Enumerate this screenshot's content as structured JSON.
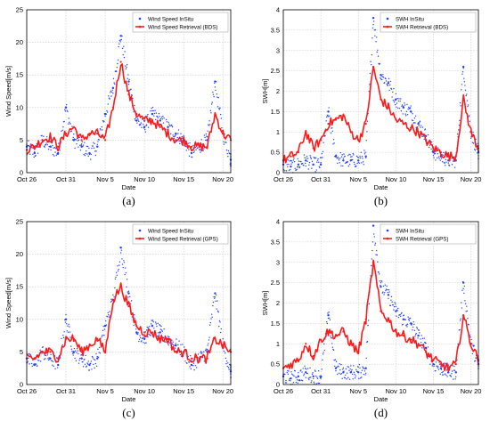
{
  "chart_data": [
    {
      "type": "scatter",
      "panel_label": "(a)",
      "xlabel": "Date",
      "ylabel": "Wind Speed[m/s]",
      "x_ticks": [
        "Oct 26",
        "Oct 31",
        "Nov 5",
        "Nov 10",
        "Nov 15",
        "Nov 20"
      ],
      "xlim": [
        "Oct 26",
        "Nov 21"
      ],
      "ylim": [
        0,
        25
      ],
      "y_ticks": [
        0,
        5,
        10,
        15,
        20,
        25
      ],
      "grid": true,
      "legend_position": "top-right",
      "colors": {
        "insitu": "#1f3fff",
        "retrieval": "#ff1a1a"
      },
      "series": [
        {
          "name": "Wind Speed InSitu",
          "style": "dots",
          "x": [
            "Oct 26",
            "Oct 27",
            "Oct 28",
            "Oct 29",
            "Oct 30",
            "Oct 31",
            "Nov 1",
            "Nov 2",
            "Nov 3",
            "Nov 4",
            "Nov 5",
            "Nov 6",
            "Nov 7",
            "Nov 8",
            "Nov 9",
            "Nov 10",
            "Nov 11",
            "Nov 12",
            "Nov 13",
            "Nov 14",
            "Nov 15",
            "Nov 16",
            "Nov 17",
            "Nov 18",
            "Nov 19",
            "Nov 20",
            "Nov 21"
          ],
          "y": [
            4,
            3,
            5,
            4,
            3,
            10,
            5,
            4,
            3,
            4,
            9,
            13,
            21,
            14,
            8,
            7,
            9,
            8,
            7,
            6,
            5,
            3,
            4,
            5,
            14,
            6,
            2
          ]
        },
        {
          "name": "Wind Speed Retrieval (BDS)",
          "style": "line",
          "x": [
            "Oct 26",
            "Oct 27",
            "Oct 28",
            "Oct 29",
            "Oct 30",
            "Oct 31",
            "Nov 1",
            "Nov 2",
            "Nov 3",
            "Nov 4",
            "Nov 5",
            "Nov 6",
            "Nov 7",
            "Nov 8",
            "Nov 9",
            "Nov 10",
            "Nov 11",
            "Nov 12",
            "Nov 13",
            "Nov 14",
            "Nov 15",
            "Nov 16",
            "Nov 17",
            "Nov 18",
            "Nov 19",
            "Nov 20",
            "Nov 21"
          ],
          "y": [
            3.5,
            4,
            5,
            5.5,
            4,
            6,
            7,
            5,
            6,
            6,
            5,
            10,
            17,
            12,
            9,
            8,
            8,
            7,
            6,
            5,
            5,
            4,
            4,
            4,
            9,
            6,
            5
          ]
        }
      ]
    },
    {
      "type": "scatter",
      "panel_label": "(b)",
      "xlabel": "Date",
      "ylabel": "SWH[m]",
      "x_ticks": [
        "Oct 26",
        "Oct 31",
        "Nov 5",
        "Nov 10",
        "Nov 15",
        "Nov 20"
      ],
      "xlim": [
        "Oct 26",
        "Nov 21"
      ],
      "ylim": [
        0,
        4
      ],
      "y_ticks": [
        0,
        0.5,
        1,
        1.5,
        2,
        2.5,
        3,
        3.5,
        4
      ],
      "grid": true,
      "legend_position": "top-right",
      "colors": {
        "insitu": "#1f3fff",
        "retrieval": "#ff1a1a"
      },
      "series": [
        {
          "name": "SWH InSitu",
          "style": "dots",
          "x": [
            "Oct 26",
            "Oct 27",
            "Oct 28",
            "Oct 29",
            "Oct 30",
            "Oct 31",
            "Nov 1",
            "Nov 2",
            "Nov 3",
            "Nov 4",
            "Nov 5",
            "Nov 6",
            "Nov 7",
            "Nov 8",
            "Nov 9",
            "Nov 10",
            "Nov 11",
            "Nov 12",
            "Nov 13",
            "Nov 14",
            "Nov 15",
            "Nov 16",
            "Nov 17",
            "Nov 18",
            "Nov 19",
            "Nov 20",
            "Nov 21"
          ],
          "y": [
            0.2,
            0.15,
            0.2,
            0.3,
            0.2,
            0.2,
            1.5,
            0.4,
            0.3,
            0.3,
            0.3,
            0.4,
            3.8,
            2.4,
            2.2,
            1.8,
            1.6,
            1.5,
            1.2,
            0.9,
            0.5,
            0.4,
            0.3,
            0.3,
            2.6,
            1.0,
            0.5
          ]
        },
        {
          "name": "SWH Retrieval (BDS)",
          "style": "line",
          "x": [
            "Oct 26",
            "Oct 27",
            "Oct 28",
            "Oct 29",
            "Oct 30",
            "Oct 31",
            "Nov 1",
            "Nov 2",
            "Nov 3",
            "Nov 4",
            "Nov 5",
            "Nov 6",
            "Nov 7",
            "Nov 8",
            "Nov 9",
            "Nov 10",
            "Nov 11",
            "Nov 12",
            "Nov 13",
            "Nov 14",
            "Nov 15",
            "Nov 16",
            "Nov 17",
            "Nov 18",
            "Nov 19",
            "Nov 20",
            "Nov 21"
          ],
          "y": [
            0.3,
            0.4,
            0.5,
            1.0,
            0.6,
            0.8,
            1.2,
            1.3,
            1.4,
            1.0,
            0.8,
            1.2,
            2.6,
            1.8,
            1.6,
            1.3,
            1.2,
            1.1,
            1.0,
            0.8,
            0.6,
            0.5,
            0.4,
            0.4,
            1.8,
            1.0,
            0.6
          ]
        }
      ]
    },
    {
      "type": "scatter",
      "panel_label": "(c)",
      "xlabel": "Date",
      "ylabel": "Wind Speed[m/s]",
      "x_ticks": [
        "Oct 26",
        "Oct 31",
        "Nov 5",
        "Nov 10",
        "Nov 15",
        "Nov 20"
      ],
      "xlim": [
        "Oct 26",
        "Nov 21"
      ],
      "ylim": [
        0,
        25
      ],
      "y_ticks": [
        0,
        5,
        10,
        15,
        20,
        25
      ],
      "grid": true,
      "legend_position": "top-right",
      "colors": {
        "insitu": "#1f3fff",
        "retrieval": "#ff1a1a"
      },
      "series": [
        {
          "name": "Wind Speed InSitu",
          "style": "dots",
          "x": [
            "Oct 26",
            "Oct 27",
            "Oct 28",
            "Oct 29",
            "Oct 30",
            "Oct 31",
            "Nov 1",
            "Nov 2",
            "Nov 3",
            "Nov 4",
            "Nov 5",
            "Nov 6",
            "Nov 7",
            "Nov 8",
            "Nov 9",
            "Nov 10",
            "Nov 11",
            "Nov 12",
            "Nov 13",
            "Nov 14",
            "Nov 15",
            "Nov 16",
            "Nov 17",
            "Nov 18",
            "Nov 19",
            "Nov 20",
            "Nov 21"
          ],
          "y": [
            4,
            3,
            5,
            4,
            3,
            10,
            5,
            4,
            3,
            4,
            9,
            13,
            21,
            14,
            8,
            7,
            9,
            8,
            7,
            6,
            5,
            3,
            4,
            5,
            14,
            6,
            2
          ]
        },
        {
          "name": "Wind Speed Retrieval (GPS)",
          "style": "line",
          "x": [
            "Oct 26",
            "Oct 27",
            "Oct 28",
            "Oct 29",
            "Oct 30",
            "Oct 31",
            "Nov 1",
            "Nov 2",
            "Nov 3",
            "Nov 4",
            "Nov 5",
            "Nov 6",
            "Nov 7",
            "Nov 8",
            "Nov 9",
            "Nov 10",
            "Nov 11",
            "Nov 12",
            "Nov 13",
            "Nov 14",
            "Nov 15",
            "Nov 16",
            "Nov 17",
            "Nov 18",
            "Nov 19",
            "Nov 20",
            "Nov 21"
          ],
          "y": [
            4,
            4,
            5,
            5,
            4,
            7,
            7,
            5,
            6,
            7,
            5,
            13,
            15,
            12,
            9,
            8,
            8,
            7,
            7,
            5,
            5,
            4,
            4,
            4,
            7,
            6,
            5
          ]
        }
      ]
    },
    {
      "type": "scatter",
      "panel_label": "(d)",
      "xlabel": "Date",
      "ylabel": "SWH[m]",
      "x_ticks": [
        "Oct 26",
        "Oct 31",
        "Nov 5",
        "Nov 10",
        "Nov 15",
        "Nov 20"
      ],
      "xlim": [
        "Oct 26",
        "Nov 21"
      ],
      "ylim": [
        0,
        4
      ],
      "y_ticks": [
        0,
        0.5,
        1,
        1.5,
        2,
        2.5,
        3,
        3.5,
        4
      ],
      "grid": true,
      "legend_position": "top-right",
      "colors": {
        "insitu": "#1f3fff",
        "retrieval": "#ff1a1a"
      },
      "series": [
        {
          "name": "SWH InSitu",
          "style": "dots",
          "x": [
            "Oct 26",
            "Oct 27",
            "Oct 28",
            "Oct 29",
            "Oct 30",
            "Oct 31",
            "Nov 1",
            "Nov 2",
            "Nov 3",
            "Nov 4",
            "Nov 5",
            "Nov 6",
            "Nov 7",
            "Nov 8",
            "Nov 9",
            "Nov 10",
            "Nov 11",
            "Nov 12",
            "Nov 13",
            "Nov 14",
            "Nov 15",
            "Nov 16",
            "Nov 17",
            "Nov 18",
            "Nov 19",
            "Nov 20",
            "Nov 21"
          ],
          "y": [
            0.2,
            0.15,
            0.2,
            0.3,
            0.2,
            0.2,
            1.7,
            0.4,
            0.3,
            0.3,
            0.3,
            0.4,
            3.9,
            2.4,
            2.2,
            1.8,
            1.6,
            1.5,
            1.2,
            0.9,
            0.5,
            0.4,
            0.3,
            0.3,
            2.5,
            1.0,
            0.5
          ]
        },
        {
          "name": "SWH Retrieval (GPS)",
          "style": "line",
          "x": [
            "Oct 26",
            "Oct 27",
            "Oct 28",
            "Oct 29",
            "Oct 30",
            "Oct 31",
            "Nov 1",
            "Nov 2",
            "Nov 3",
            "Nov 4",
            "Nov 5",
            "Nov 6",
            "Nov 7",
            "Nov 8",
            "Nov 9",
            "Nov 10",
            "Nov 11",
            "Nov 12",
            "Nov 13",
            "Nov 14",
            "Nov 15",
            "Nov 16",
            "Nov 17",
            "Nov 18",
            "Nov 19",
            "Nov 20",
            "Nov 21"
          ],
          "y": [
            0.4,
            0.5,
            0.6,
            1.0,
            0.7,
            1.1,
            1.3,
            1.2,
            1.3,
            1.0,
            0.8,
            1.6,
            3.0,
            1.8,
            1.6,
            1.3,
            1.2,
            1.1,
            1.0,
            0.8,
            0.6,
            0.5,
            0.4,
            0.5,
            1.7,
            1.0,
            0.6
          ]
        }
      ]
    }
  ]
}
